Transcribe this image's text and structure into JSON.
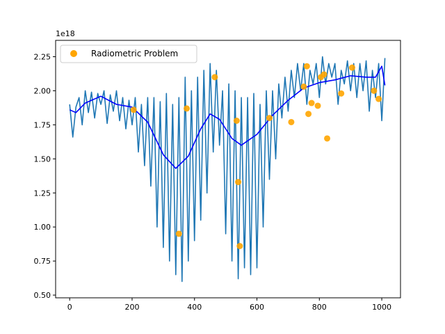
{
  "chart_data": {
    "type": "line",
    "title": "",
    "xlabel": "",
    "ylabel": "",
    "xlim": [
      -45,
      1060
    ],
    "ylim": [
      0.48,
      2.37
    ],
    "y_offset_text": "1e18",
    "x_ticks": [
      0,
      200,
      400,
      600,
      800,
      1000
    ],
    "x_tick_labels": [
      "0",
      "200",
      "400",
      "600",
      "800",
      "1000"
    ],
    "y_ticks": [
      0.5,
      0.75,
      1.0,
      1.25,
      1.5,
      1.75,
      2.0,
      2.25
    ],
    "y_tick_labels": [
      "0.50",
      "0.75",
      "1.00",
      "1.25",
      "1.50",
      "1.75",
      "2.00",
      "2.25"
    ],
    "grid": false,
    "legend_position": "top-left",
    "legend": [
      {
        "label": "Radiometric Problem",
        "color": "#ffa500",
        "marker": "circle"
      }
    ],
    "series": [
      {
        "kind": "line",
        "color": "#1f77b4",
        "x": [
          0,
          10,
          20,
          30,
          40,
          50,
          60,
          70,
          80,
          90,
          100,
          110,
          120,
          130,
          140,
          150,
          160,
          170,
          180,
          190,
          200,
          210,
          220,
          230,
          240,
          250,
          260,
          270,
          280,
          290,
          300,
          310,
          320,
          330,
          340,
          350,
          360,
          370,
          380,
          390,
          400,
          410,
          420,
          430,
          440,
          450,
          460,
          470,
          480,
          490,
          500,
          510,
          520,
          530,
          540,
          550,
          560,
          570,
          580,
          590,
          600,
          610,
          620,
          630,
          640,
          650,
          660,
          670,
          680,
          690,
          700,
          710,
          720,
          730,
          740,
          750,
          760,
          770,
          780,
          790,
          800,
          810,
          820,
          830,
          840,
          850,
          860,
          870,
          880,
          890,
          900,
          910,
          920,
          930,
          940,
          950,
          960,
          970,
          980,
          990,
          1000,
          1010
        ],
        "values": [
          1.9,
          1.66,
          1.88,
          1.95,
          1.75,
          2.0,
          1.84,
          1.99,
          1.8,
          1.98,
          1.9,
          2.0,
          1.76,
          1.97,
          1.85,
          2.0,
          1.78,
          1.95,
          1.72,
          1.93,
          1.75,
          1.95,
          1.55,
          1.9,
          1.45,
          1.95,
          1.3,
          1.95,
          1.0,
          1.92,
          0.85,
          1.98,
          0.75,
          1.9,
          0.65,
          1.95,
          0.6,
          2.1,
          0.75,
          2.0,
          0.9,
          2.1,
          1.05,
          2.15,
          1.25,
          2.2,
          1.55,
          2.15,
          1.6,
          2.0,
          0.95,
          2.05,
          0.75,
          2.0,
          0.62,
          1.95,
          0.7,
          1.95,
          0.65,
          1.98,
          0.7,
          1.9,
          1.0,
          2.0,
          1.35,
          2.0,
          1.5,
          2.05,
          1.8,
          2.1,
          1.85,
          2.15,
          1.95,
          2.2,
          2.0,
          2.2,
          1.9,
          2.15,
          2.05,
          2.2,
          1.95,
          2.25,
          2.05,
          2.2,
          2.1,
          2.2,
          1.9,
          2.15,
          2.05,
          2.22,
          2.0,
          2.2,
          1.95,
          2.2,
          2.0,
          2.22,
          1.85,
          2.15,
          1.95,
          2.2,
          1.78,
          2.24
        ]
      },
      {
        "kind": "line",
        "color": "#0000ff",
        "x": [
          0,
          20,
          50,
          100,
          150,
          200,
          250,
          300,
          340,
          380,
          420,
          450,
          480,
          520,
          550,
          600,
          650,
          700,
          750,
          800,
          850,
          900,
          950,
          980,
          1000,
          1010
        ],
        "values": [
          1.86,
          1.84,
          1.91,
          1.96,
          1.9,
          1.88,
          1.77,
          1.53,
          1.43,
          1.52,
          1.72,
          1.83,
          1.79,
          1.65,
          1.6,
          1.68,
          1.82,
          1.93,
          2.02,
          2.06,
          2.08,
          2.11,
          2.1,
          2.1,
          2.18,
          2.04
        ]
      },
      {
        "kind": "scatter",
        "name": "Radiometric Problem",
        "color": "#ffa500",
        "x": [
          205,
          350,
          375,
          465,
          535,
          540,
          545,
          640,
          710,
          750,
          760,
          765,
          775,
          795,
          805,
          815,
          825,
          870,
          905,
          975,
          990
        ],
        "values": [
          1.86,
          0.95,
          1.87,
          2.1,
          1.78,
          1.33,
          0.86,
          1.8,
          1.77,
          2.03,
          2.18,
          1.83,
          1.91,
          1.89,
          2.1,
          2.12,
          1.65,
          1.98,
          2.17,
          2.0,
          1.94
        ]
      }
    ]
  }
}
